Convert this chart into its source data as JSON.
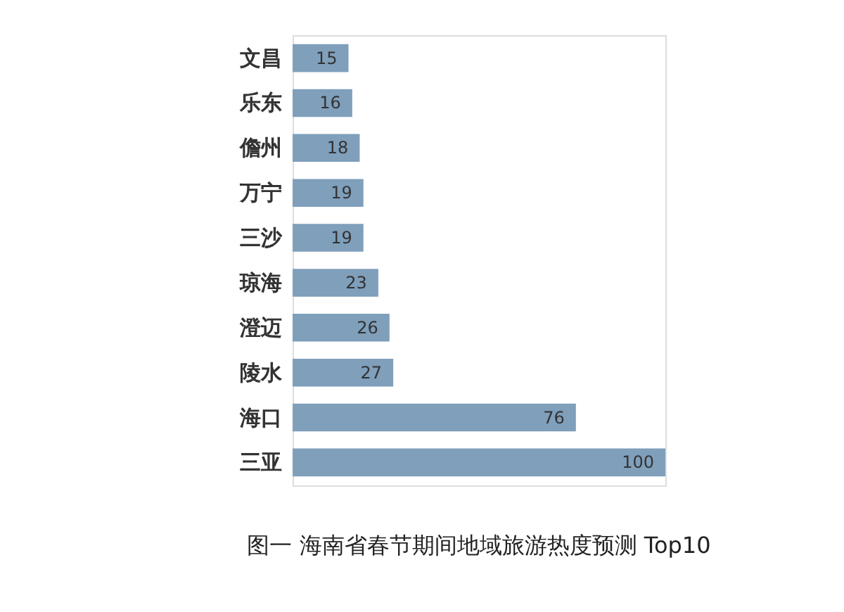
{
  "chart_data": {
    "type": "bar",
    "orientation": "horizontal",
    "title": "图一  海南省春节期间地域旅游热度预测 Top10",
    "categories": [
      "文昌",
      "乐东",
      "儋州",
      "万宁",
      "三沙",
      "琼海",
      "澄迈",
      "陵水",
      "海口",
      "三亚"
    ],
    "values": [
      15,
      16,
      18,
      19,
      19,
      23,
      26,
      27,
      76,
      100
    ],
    "color": "#7f9fbb",
    "data_labels": true
  }
}
